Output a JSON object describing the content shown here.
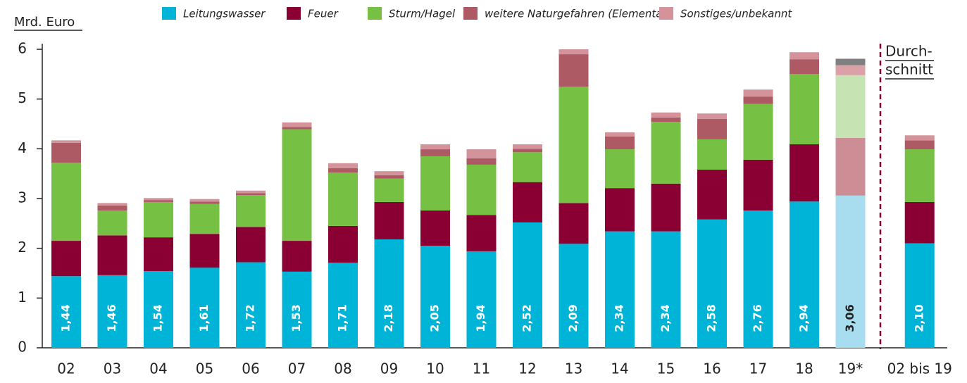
{
  "chart_data": {
    "type": "stacked_bar",
    "ylabel": "Mrd. Euro",
    "categories": [
      "02",
      "03",
      "04",
      "05",
      "06",
      "07",
      "08",
      "09",
      "10",
      "11",
      "12",
      "13",
      "14",
      "15",
      "16",
      "17",
      "18",
      "19*",
      "02 bis 19"
    ],
    "series": [
      {
        "name": "Leitungswasser",
        "colors": [
          "#00b4d8",
          "#00b4d8",
          "#00b4d8",
          "#00b4d8",
          "#00b4d8",
          "#00b4d8",
          "#00b4d8",
          "#00b4d8",
          "#00b4d8",
          "#00b4d8",
          "#00b4d8",
          "#00b4d8",
          "#00b4d8",
          "#00b4d8",
          "#00b4d8",
          "#00b4d8",
          "#00b4d8",
          "#a8dcef",
          "#00b4d8"
        ],
        "values": [
          1.44,
          1.46,
          1.54,
          1.61,
          1.72,
          1.53,
          1.71,
          2.18,
          2.05,
          1.94,
          2.52,
          2.09,
          2.34,
          2.34,
          2.58,
          2.76,
          2.94,
          3.06,
          2.1
        ],
        "value_labels": [
          "1,44",
          "1,46",
          "1,54",
          "1,61",
          "1,72",
          "1,53",
          "1,71",
          "2,18",
          "2,05",
          "1,94",
          "2,52",
          "2,09",
          "2,34",
          "2,34",
          "2,58",
          "2,76",
          "2,94",
          "3,06",
          "2,10"
        ]
      },
      {
        "name": "Feuer",
        "colors": [
          "#8b0033",
          "#8b0033",
          "#8b0033",
          "#8b0033",
          "#8b0033",
          "#8b0033",
          "#8b0033",
          "#8b0033",
          "#8b0033",
          "#8b0033",
          "#8b0033",
          "#8b0033",
          "#8b0033",
          "#8b0033",
          "#8b0033",
          "#8b0033",
          "#8b0033",
          "#cc8e94",
          "#8b0033"
        ],
        "values": [
          0.71,
          0.8,
          0.68,
          0.68,
          0.71,
          0.62,
          0.74,
          0.75,
          0.71,
          0.73,
          0.81,
          0.82,
          0.87,
          0.96,
          1.0,
          1.02,
          1.15,
          1.16,
          0.83
        ]
      },
      {
        "name": "Sturm/Hagel",
        "colors": [
          "#76c043",
          "#76c043",
          "#76c043",
          "#76c043",
          "#76c043",
          "#76c043",
          "#76c043",
          "#76c043",
          "#76c043",
          "#76c043",
          "#76c043",
          "#76c043",
          "#76c043",
          "#76c043",
          "#76c043",
          "#76c043",
          "#76c043",
          "#c6e3b4",
          "#76c043"
        ],
        "values": [
          1.57,
          0.5,
          0.71,
          0.6,
          0.64,
          2.24,
          1.07,
          0.47,
          1.09,
          1.01,
          0.6,
          2.34,
          0.78,
          1.24,
          0.61,
          1.12,
          1.41,
          1.26,
          1.06
        ]
      },
      {
        "name": "weitere Naturgefahren (Elementar)",
        "colors": [
          "#ad5a64",
          "#ad5a64",
          "#ad5a64",
          "#ad5a64",
          "#ad5a64",
          "#ad5a64",
          "#ad5a64",
          "#ad5a64",
          "#ad5a64",
          "#ad5a64",
          "#ad5a64",
          "#ad5a64",
          "#ad5a64",
          "#ad5a64",
          "#ad5a64",
          "#ad5a64",
          "#ad5a64",
          "#dba1a6",
          "#ad5a64"
        ],
        "values": [
          0.4,
          0.1,
          0.04,
          0.05,
          0.04,
          0.05,
          0.09,
          0.07,
          0.14,
          0.13,
          0.07,
          0.65,
          0.26,
          0.09,
          0.41,
          0.15,
          0.3,
          0.2,
          0.18
        ]
      },
      {
        "name": "Sonstiges/unbekannt",
        "colors": [
          "#d4939a",
          "#d4939a",
          "#d4939a",
          "#d4939a",
          "#d4939a",
          "#d4939a",
          "#d4939a",
          "#d4939a",
          "#d4939a",
          "#d4939a",
          "#d4939a",
          "#d4939a",
          "#d4939a",
          "#d4939a",
          "#d4939a",
          "#d4939a",
          "#d4939a",
          "#7f7f7f",
          "#d4939a"
        ],
        "values": [
          0.05,
          0.05,
          0.04,
          0.05,
          0.05,
          0.09,
          0.1,
          0.08,
          0.1,
          0.18,
          0.09,
          0.1,
          0.08,
          0.1,
          0.11,
          0.14,
          0.14,
          0.13,
          0.1
        ]
      }
    ],
    "annotation": [
      "Durch-",
      "schnitt"
    ],
    "ylim": [
      0,
      6
    ],
    "yticks": [
      0,
      1,
      2,
      3,
      4,
      5,
      6
    ]
  }
}
